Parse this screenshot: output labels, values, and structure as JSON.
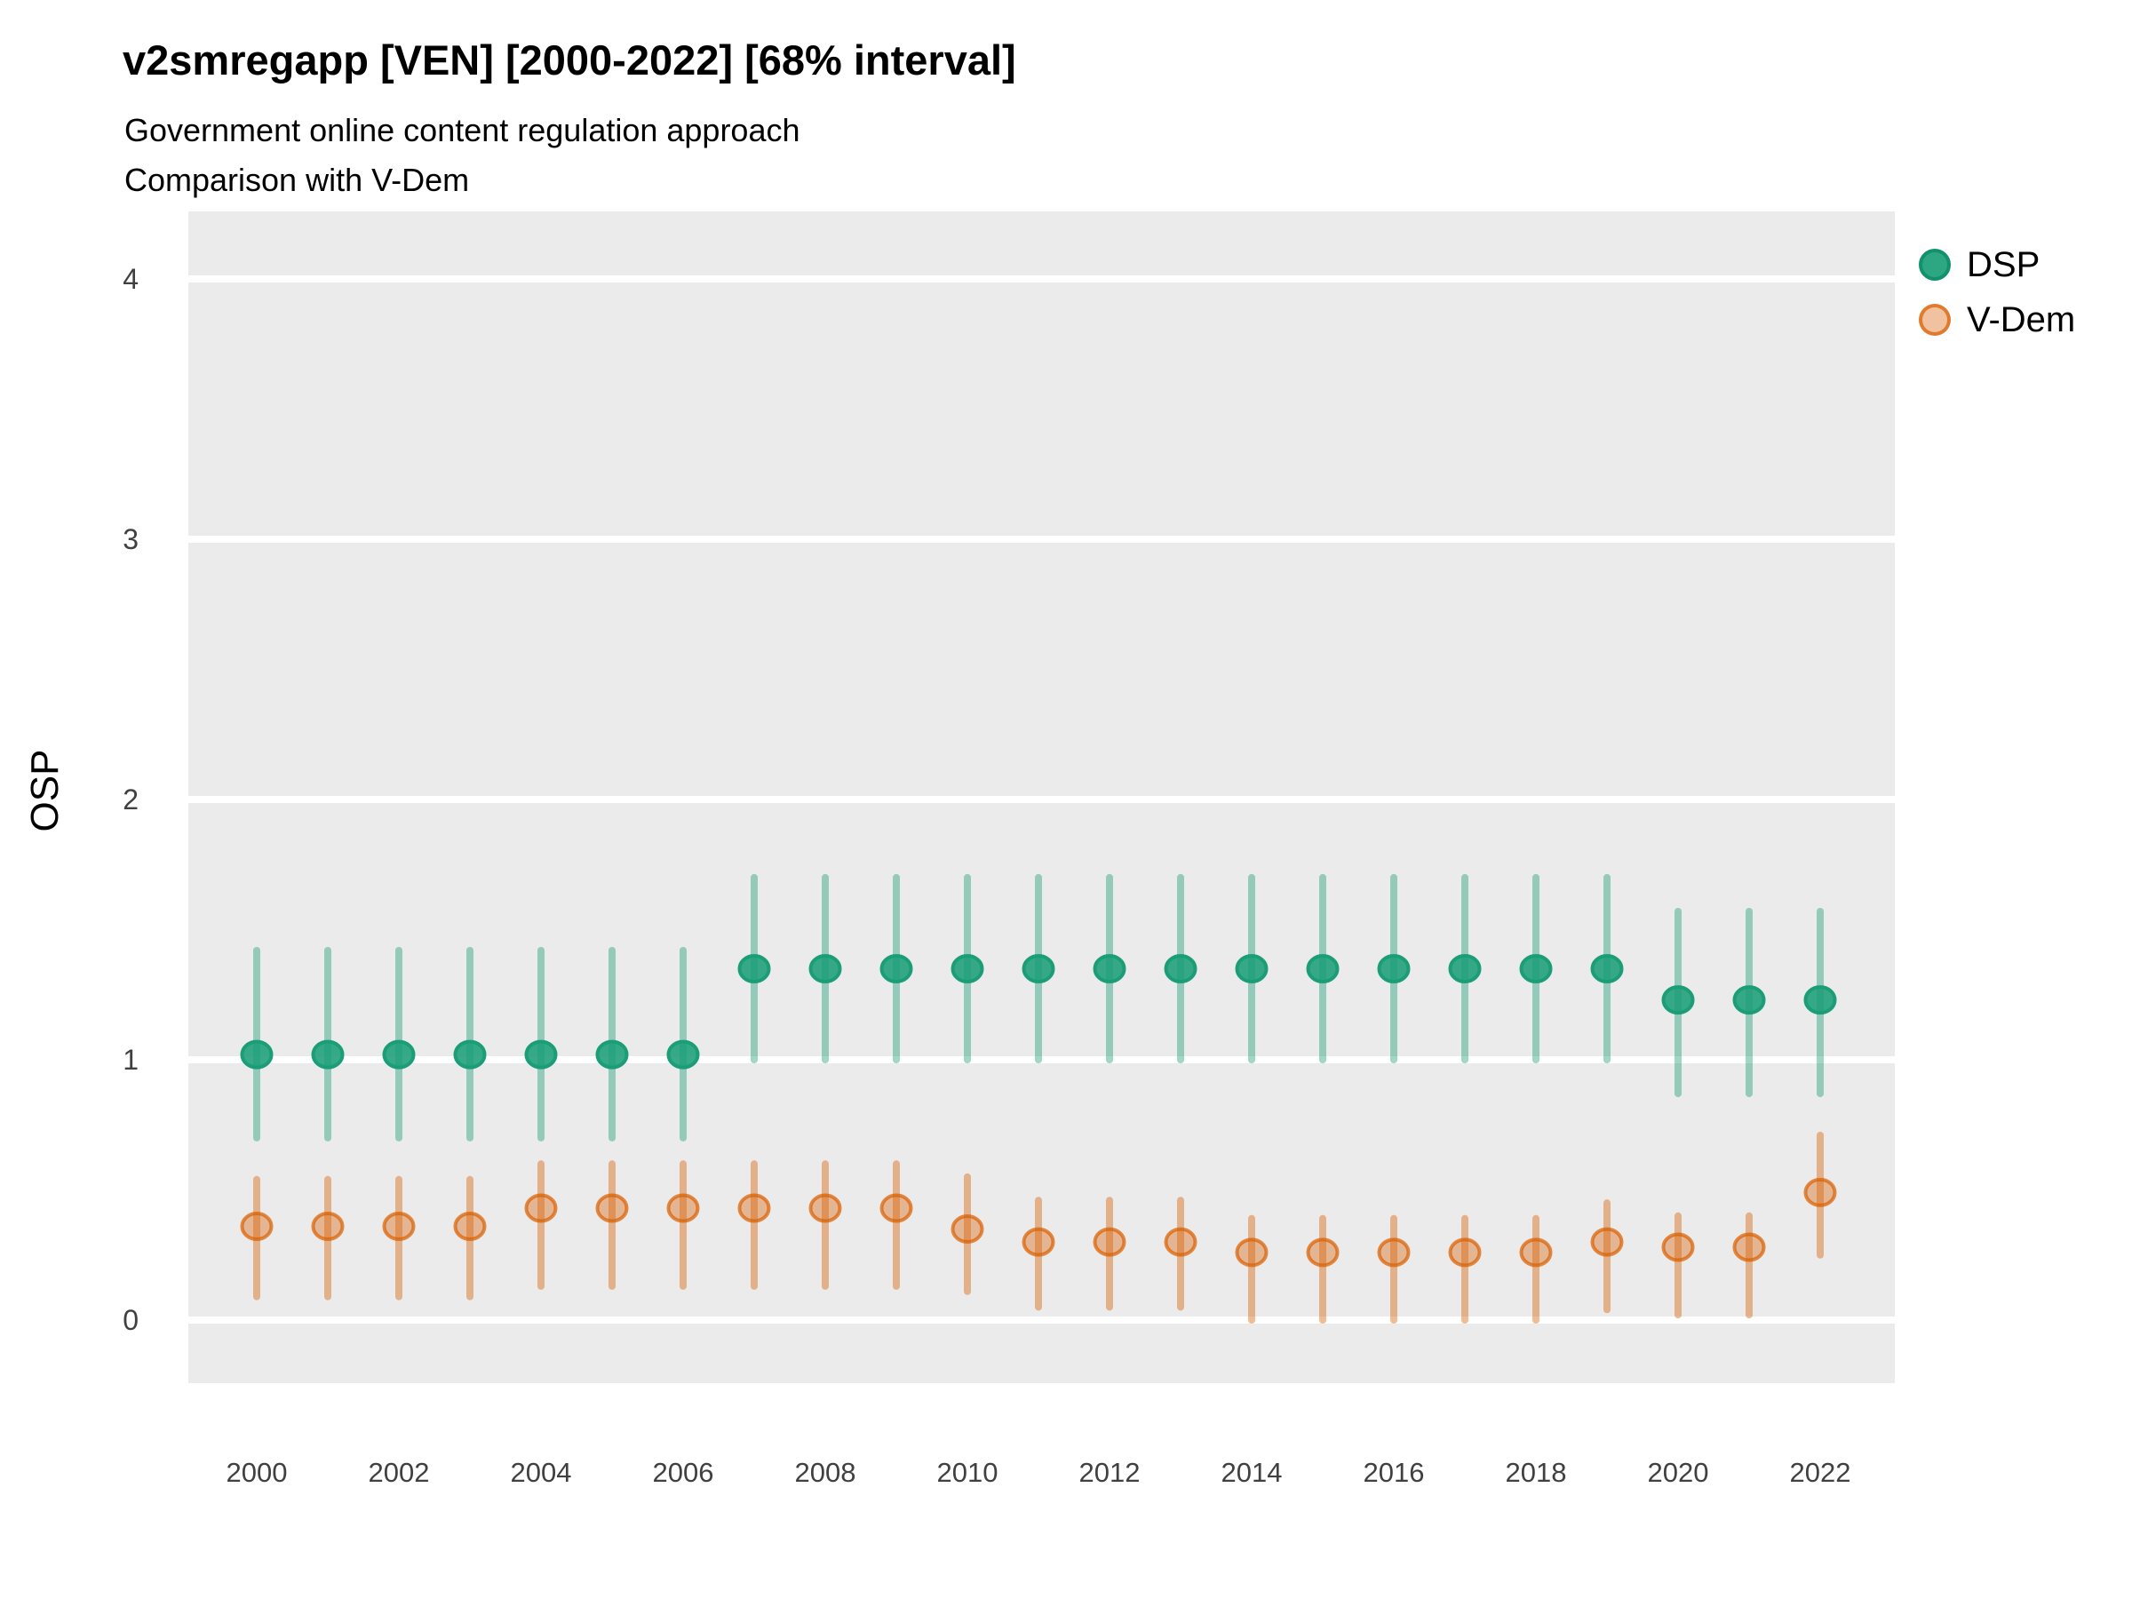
{
  "header": {
    "title": "v2smregapp [VEN] [2000-2022] [68% interval]",
    "subtitle_line1": "Government online content regulation approach",
    "subtitle_line2": "Comparison with V-Dem"
  },
  "axes": {
    "y_label": "OSP",
    "y_tick_labels": [
      "0",
      "1",
      "2",
      "3",
      "4"
    ],
    "y_tick_values": [
      0,
      1,
      2,
      3,
      4
    ],
    "x_tick_labels": [
      "2000",
      "2002",
      "2004",
      "2006",
      "2008",
      "2010",
      "2012",
      "2014",
      "2016",
      "2018",
      "2020",
      "2022"
    ],
    "x_tick_values": [
      2000,
      2002,
      2004,
      2006,
      2008,
      2010,
      2012,
      2014,
      2016,
      2018,
      2020,
      2022
    ]
  },
  "legend": {
    "items": [
      {
        "label": "DSP",
        "color": "#1B9E77"
      },
      {
        "label": "V-Dem",
        "color": "#D95F02"
      }
    ]
  },
  "colors": {
    "panel_background": "#EBEBEB",
    "gridline": "#FFFFFF",
    "dsp": "#1B9E77",
    "vdem": "#D95F02",
    "tick_text": "#404040",
    "title_text": "#000000"
  },
  "chart_data": {
    "type": "scatter",
    "subtype": "pointrange-errorbar",
    "title": "v2smregapp [VEN] [2000-2022] [68% interval]",
    "subtitle": "Government online content regulation approach / Comparison with V-Dem",
    "interval": "68%",
    "xlabel": "",
    "ylabel": "OSP",
    "xlim": [
      1999,
      2023
    ],
    "ylim": [
      -0.25,
      4.25
    ],
    "grid": "horizontal-major-only",
    "legend_position": "right",
    "x": [
      2000,
      2001,
      2002,
      2003,
      2004,
      2005,
      2006,
      2007,
      2008,
      2009,
      2010,
      2011,
      2012,
      2013,
      2014,
      2015,
      2016,
      2017,
      2018,
      2019,
      2020,
      2021,
      2022
    ],
    "series": [
      {
        "name": "DSP",
        "color": "#1B9E77",
        "est": [
          1.02,
          1.02,
          1.02,
          1.02,
          1.02,
          1.02,
          1.02,
          1.35,
          1.35,
          1.35,
          1.35,
          1.35,
          1.35,
          1.35,
          1.35,
          1.35,
          1.35,
          1.35,
          1.35,
          1.35,
          1.23,
          1.23,
          1.23
        ],
        "lo": [
          0.7,
          0.7,
          0.7,
          0.7,
          0.7,
          0.7,
          0.7,
          1.0,
          1.0,
          1.0,
          1.0,
          1.0,
          1.0,
          1.0,
          1.0,
          1.0,
          1.0,
          1.0,
          1.0,
          1.0,
          0.87,
          0.87,
          0.87
        ],
        "hi": [
          1.42,
          1.42,
          1.42,
          1.42,
          1.42,
          1.42,
          1.42,
          1.7,
          1.7,
          1.7,
          1.7,
          1.7,
          1.7,
          1.7,
          1.7,
          1.7,
          1.7,
          1.7,
          1.7,
          1.7,
          1.57,
          1.57,
          1.57
        ]
      },
      {
        "name": "V-Dem",
        "color": "#D95F02",
        "est": [
          0.36,
          0.36,
          0.36,
          0.36,
          0.43,
          0.43,
          0.43,
          0.43,
          0.43,
          0.43,
          0.35,
          0.3,
          0.3,
          0.3,
          0.26,
          0.26,
          0.26,
          0.26,
          0.26,
          0.3,
          0.28,
          0.28,
          0.49
        ],
        "lo": [
          0.09,
          0.09,
          0.09,
          0.09,
          0.13,
          0.13,
          0.13,
          0.13,
          0.13,
          0.13,
          0.11,
          0.05,
          0.05,
          0.05,
          0.0,
          0.0,
          0.0,
          0.0,
          0.0,
          0.04,
          0.02,
          0.02,
          0.25
        ],
        "hi": [
          0.54,
          0.54,
          0.54,
          0.54,
          0.6,
          0.6,
          0.6,
          0.6,
          0.6,
          0.6,
          0.55,
          0.46,
          0.46,
          0.46,
          0.39,
          0.39,
          0.39,
          0.39,
          0.39,
          0.45,
          0.4,
          0.4,
          0.71
        ]
      }
    ]
  }
}
